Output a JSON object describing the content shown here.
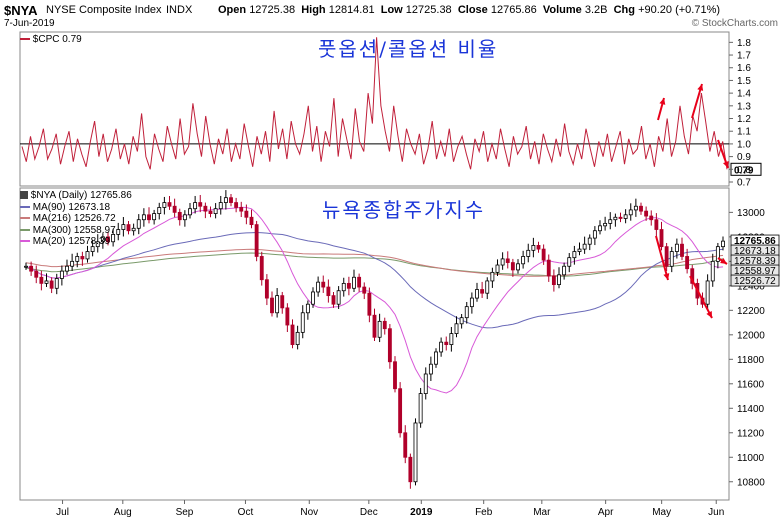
{
  "header": {
    "symbol": "$NYA",
    "name": "NYSE Composite Index",
    "exchange": "INDX",
    "date": "7-Jun-2019",
    "open_label": "Open",
    "open": "12725.38",
    "high_label": "High",
    "high": "12814.81",
    "low_label": "Low",
    "low": "12725.38",
    "close_label": "Close",
    "close": "12765.86",
    "volume_label": "Volume",
    "volume": "3.2B",
    "chg_label": "Chg",
    "chg": "+90.20 (+0.71%)",
    "brand": "© StockCharts.com"
  },
  "annotations": {
    "top_title": "풋옵션/콜옵션 비율",
    "bottom_title": "뉴욕종합주가지수"
  },
  "colors": {
    "cpc_line": "#c0203a",
    "arrow": "#e8001a",
    "ma90": "#6a6ab8",
    "ma216": "#c97a7a",
    "ma300": "#7a9a6a",
    "ma20": "#d85ad8",
    "candle_up": "#000000",
    "candle_down": "#b0002a"
  },
  "chart_data": [
    {
      "type": "line",
      "title": "$CPC",
      "legend": [
        {
          "name": "$CPC",
          "value": "0.79"
        }
      ],
      "y_ticks": [
        "1.8",
        "1.7",
        "1.6",
        "1.5",
        "1.4",
        "1.3",
        "1.2",
        "1.1",
        "1.0",
        "0.9",
        "0.8",
        "0.7"
      ],
      "ylim": [
        0.7,
        1.85
      ],
      "reference_line": 1.0,
      "last_value_label": "0.79",
      "series": [
        {
          "name": "$CPC",
          "values": [
            0.98,
            0.86,
            1.06,
            0.88,
            0.98,
            1.12,
            0.88,
            0.96,
            1.08,
            0.84,
            0.98,
            1.1,
            0.86,
            1.04,
            0.92,
            0.82,
            1.02,
            1.18,
            0.9,
            1.08,
            0.86,
            0.96,
            1.12,
            0.88,
            1.0,
            0.84,
            1.06,
            0.94,
            1.24,
            0.9,
            0.8,
            1.08,
            0.96,
            0.86,
            1.14,
            1.0,
            0.88,
            1.2,
            0.92,
            0.98,
            1.32,
            1.08,
            0.9,
            1.22,
            1.0,
            0.84,
            1.04,
            0.92,
            1.12,
            0.86,
            1.0,
            0.88,
            1.16,
            0.98,
            0.82,
            1.06,
            0.92,
            1.1,
            0.86,
            1.26,
            0.96,
            1.12,
            0.88,
            1.18,
            1.0,
            0.92,
            1.08,
            1.3,
            0.94,
            1.14,
            0.86,
            1.1,
            0.98,
            1.36,
            0.9,
            1.2,
            1.04,
            0.88,
            1.28,
            1.02,
            0.94,
            1.4,
            1.16,
            1.84,
            1.3,
            1.1,
            0.94,
            1.3,
            1.06,
            0.86,
            1.12,
            1.0,
            0.92,
            1.08,
            0.84,
            0.96,
            1.18,
            0.88,
            1.02,
            0.9,
            1.12,
            0.86,
            0.98,
            1.06,
            0.92,
            0.8,
            1.04,
            0.94,
            1.1,
            0.86,
            1.0,
            0.88,
            1.12,
            0.96,
            0.82,
            1.06,
            0.92,
            0.98,
            1.14,
            0.88,
            1.02,
            0.84,
            1.08,
            0.96,
            0.86,
            1.04,
            0.9,
            1.16,
            0.94,
            0.84,
            1.0,
            0.88,
            1.12,
            0.96,
            0.82,
            1.02,
            0.9,
            1.08,
            0.86,
            0.98,
            1.1,
            0.84,
            1.04,
            0.92,
            0.96,
            1.14,
            0.88,
            1.0,
            0.82,
            1.06,
            0.94,
            1.2,
            0.9,
            1.02,
            1.3,
            1.06,
            0.92,
            1.22,
            1.1,
            1.4,
            1.18,
            0.94,
            1.1,
            0.9,
            1.02,
            0.8
          ]
        }
      ],
      "arrows": [
        "up",
        "up",
        "down"
      ]
    },
    {
      "type": "candlestick",
      "title": "$NYA (Daily)",
      "legend": [
        {
          "name": "$NYA (Daily)",
          "value": "12765.86"
        },
        {
          "name": "MA(90)",
          "value": "12673.18"
        },
        {
          "name": "MA(216)",
          "value": "12526.72"
        },
        {
          "name": "MA(300)",
          "value": "12558.97"
        },
        {
          "name": "MA(20)",
          "value": "12578.39"
        }
      ],
      "x_labels": [
        "Jul",
        "Aug",
        "Sep",
        "Oct",
        "Nov",
        "Dec",
        "2019",
        "Feb",
        "Mar",
        "Apr",
        "May",
        "Jun"
      ],
      "y_ticks": [
        "13000",
        "12800",
        "12600",
        "12400",
        "12200",
        "12000",
        "11800",
        "11600",
        "11400",
        "11200",
        "11000",
        "10800"
      ],
      "ylim": [
        10700,
        13150
      ],
      "last_labels": [
        "12765.86",
        "12673.18",
        "12578.39",
        "12558.97",
        "12526.72"
      ],
      "close": [
        12560,
        12520,
        12470,
        12420,
        12440,
        12380,
        12460,
        12520,
        12560,
        12600,
        12640,
        12620,
        12680,
        12720,
        12760,
        12800,
        12760,
        12820,
        12860,
        12900,
        12850,
        12870,
        12940,
        12980,
        12940,
        12990,
        13040,
        13080,
        13050,
        13000,
        12940,
        12980,
        13030,
        13080,
        13050,
        13010,
        12990,
        13030,
        13080,
        13120,
        13080,
        13040,
        13010,
        12960,
        12900,
        12640,
        12450,
        12300,
        12180,
        12320,
        12220,
        12080,
        11920,
        12020,
        12180,
        12250,
        12350,
        12430,
        12390,
        12320,
        12250,
        12360,
        12420,
        12380,
        12470,
        12390,
        12340,
        12160,
        11980,
        12110,
        12050,
        11780,
        11560,
        11200,
        11000,
        10800,
        11280,
        11520,
        11680,
        11760,
        11860,
        11940,
        11920,
        12010,
        12090,
        12140,
        12230,
        12300,
        12370,
        12340,
        12440,
        12510,
        12570,
        12620,
        12590,
        12530,
        12580,
        12640,
        12690,
        12730,
        12700,
        12610,
        12480,
        12410,
        12490,
        12560,
        12630,
        12680,
        12700,
        12740,
        12790,
        12850,
        12890,
        12910,
        12940,
        12960,
        12950,
        12980,
        13020,
        13050,
        13010,
        12970,
        12940,
        12860,
        12720,
        12560,
        12680,
        12740,
        12640,
        12540,
        12420,
        12300,
        12250,
        12440,
        12600,
        12720,
        12765
      ]
    }
  ]
}
